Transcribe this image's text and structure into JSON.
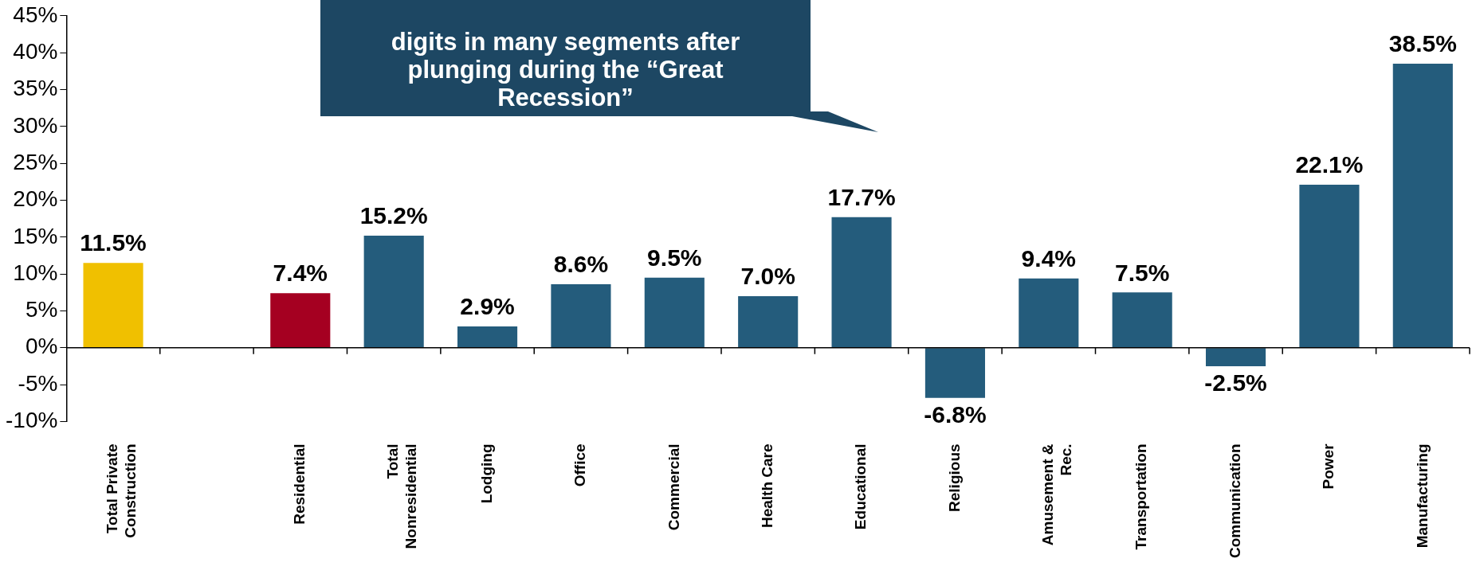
{
  "chart_data": {
    "type": "bar",
    "categories": [
      "Total Private Construction",
      null,
      "Residential",
      "Total Nonresidential",
      "Lodging",
      "Office",
      "Commercial",
      "Health Care",
      "Educational",
      "Religious",
      "Amusement & Rec.",
      "Transportation",
      "Communication",
      "Power",
      "Manufacturing"
    ],
    "values": [
      11.5,
      null,
      7.4,
      15.2,
      2.9,
      8.6,
      9.5,
      7.0,
      17.7,
      -6.8,
      9.4,
      7.5,
      -2.5,
      22.1,
      38.5
    ],
    "value_labels": [
      "11.5%",
      null,
      "7.4%",
      "15.2%",
      "2.9%",
      "8.6%",
      "9.5%",
      "7.0%",
      "17.7%",
      "-6.8%",
      "9.4%",
      "7.5%",
      "-2.5%",
      "22.1%",
      "38.5%"
    ],
    "colors": [
      "#f0c000",
      null,
      "#a50021",
      "#245c7c",
      "#245c7c",
      "#245c7c",
      "#245c7c",
      "#245c7c",
      "#245c7c",
      "#245c7c",
      "#245c7c",
      "#245c7c",
      "#245c7c",
      "#245c7c",
      "#245c7c"
    ],
    "ylim": [
      -10,
      45
    ],
    "yticks": [
      {
        "value": -10,
        "label": "-10%"
      },
      {
        "value": -5,
        "label": "-5%"
      },
      {
        "value": 0,
        "label": "0%"
      },
      {
        "value": 5,
        "label": "5%"
      },
      {
        "value": 10,
        "label": "10%"
      },
      {
        "value": 15,
        "label": "15%"
      },
      {
        "value": 20,
        "label": "20%"
      },
      {
        "value": 25,
        "label": "25%"
      },
      {
        "value": 30,
        "label": "30%"
      },
      {
        "value": 35,
        "label": "35%"
      },
      {
        "value": 40,
        "label": "40%"
      },
      {
        "value": 45,
        "label": "45%"
      }
    ],
    "legend": false,
    "annotations": [
      "digits in many segments after plunging during the “Great Recession”"
    ]
  }
}
